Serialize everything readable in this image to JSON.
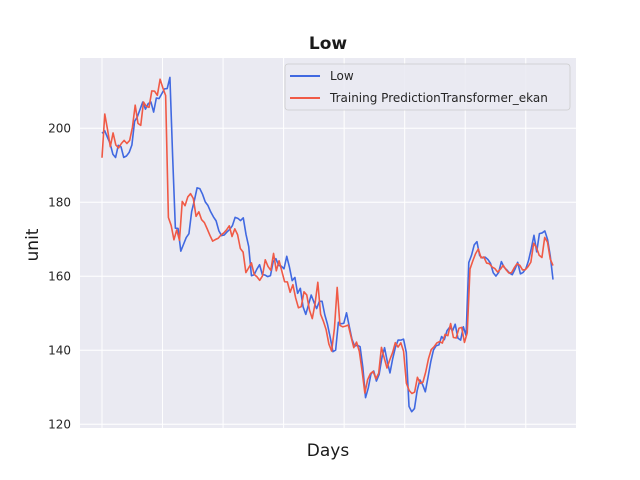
{
  "chart_data": {
    "type": "line",
    "title": "Low",
    "xlabel": "Days",
    "ylabel": "unit",
    "ylim": [
      119,
      219
    ],
    "yticks": [
      120,
      140,
      160,
      180,
      200
    ],
    "x_count": 150,
    "grid": true,
    "legend_position": "top-right",
    "colors": {
      "background": "#eaeaf2",
      "grid": "#ffffff",
      "low": "#4169e1",
      "prediction": "#f05a46"
    },
    "series": [
      {
        "name": "Low",
        "values": [
          198.64,
          199.33,
          197.55,
          195.89,
          193.0,
          192.11,
          195.39,
          195.0,
          192.14,
          192.52,
          193.48,
          195.48,
          201.88,
          203.09,
          205.11,
          207.1,
          205.17,
          206.66,
          207.13,
          204.39,
          208.18,
          208.02,
          209.33,
          210.65,
          210.75,
          213.75,
          192.4,
          173.0,
          172.94,
          166.8,
          168.63,
          170.47,
          171.51,
          177.5,
          180.5,
          183.91,
          183.69,
          182.19,
          180.11,
          179.13,
          177.44,
          176.08,
          174.98,
          172.32,
          170.99,
          171.16,
          171.98,
          172.66,
          173.7,
          175.93,
          175.67,
          175.06,
          175.8,
          171.35,
          168.04,
          160.16,
          160.41,
          161.92,
          163.13,
          160.48,
          160.33,
          159.91,
          160.18,
          163.93,
          164.77,
          162.96,
          162.73,
          162.04,
          165.41,
          162.45,
          158.82,
          159.7,
          155.39,
          156.76,
          151.77,
          149.71,
          152.29,
          154.94,
          153.02,
          151.27,
          153.23,
          153.25,
          149.6,
          147.0,
          143.48,
          139.62,
          140.06,
          147.56,
          147.17,
          147.3,
          150.14,
          146.51,
          143.0,
          141.13,
          141.37,
          140.97,
          135.43,
          127.2,
          129.79,
          133.59,
          134.4,
          131.69,
          133.46,
          137.89,
          140.72,
          137.0,
          133.89,
          137.74,
          140.82,
          142.76,
          142.75,
          143.01,
          139.39,
          124.84,
          123.4,
          124.25,
          129.13,
          131.99,
          130.74,
          128.78,
          132.71,
          136.88,
          140.06,
          141.24,
          141.47,
          143.72,
          142.87,
          145.32,
          146.28,
          145.23,
          147.05,
          143.28,
          142.74,
          146.36,
          143.97,
          163.72,
          165.65,
          168.48,
          169.36,
          165.63,
          164.97,
          165.17,
          164.58,
          163.52,
          160.96,
          160.06,
          161.04,
          163.97,
          162.43,
          161.72,
          160.89,
          160.43,
          161.89,
          163.78,
          160.66,
          161.04,
          162.05,
          164.27,
          167.48,
          171.07,
          166.62,
          171.53,
          171.72,
          172.26,
          169.95,
          165.47,
          159.12
        ],
        "color": "#4169e1"
      },
      {
        "name": "Training PredictionTransformer_ekan",
        "values": [
          192.04,
          203.85,
          199.68,
          195.03,
          198.74,
          195.49,
          194.69,
          195.89,
          196.74,
          195.9,
          196.71,
          200.29,
          206.26,
          201.34,
          200.79,
          207.08,
          205.93,
          205.67,
          210.11,
          210.04,
          208.91,
          213.26,
          210.91,
          208.86,
          175.9,
          173.75,
          169.87,
          172.54,
          169.74,
          180.24,
          179.07,
          181.45,
          182.35,
          181.02,
          176.21,
          177.43,
          175.29,
          174.52,
          172.85,
          171.08,
          169.51,
          169.94,
          170.29,
          171.17,
          171.72,
          172.54,
          173.65,
          170.75,
          172.83,
          171.26,
          167.51,
          166.54,
          161.0,
          162.27,
          163.63,
          160.5,
          159.87,
          158.91,
          160.11,
          164.45,
          162.66,
          161.61,
          166.17,
          161.48,
          164.2,
          161.37,
          158.53,
          158.47,
          155.68,
          157.73,
          154.12,
          151.49,
          151.79,
          155.81,
          154.96,
          150.82,
          148.56,
          152.59,
          158.37,
          149.75,
          147.88,
          145.57,
          141.69,
          139.8,
          145.89,
          157.0,
          146.71,
          146.34,
          146.54,
          146.83,
          143.68,
          140.71,
          142.21,
          139.71,
          134.45,
          128.44,
          132.05,
          133.69,
          134.29,
          132.31,
          133.82,
          140.79,
          137.93,
          135.22,
          137.41,
          139.31,
          142.06,
          140.88,
          142.02,
          139.75,
          131.11,
          129.17,
          128.33,
          128.72,
          132.7,
          131.05,
          131.4,
          134.14,
          137.73,
          140.21,
          140.95,
          141.98,
          142.37,
          141.95,
          144.31,
          143.95,
          147.23,
          143.46,
          143.32,
          145.95,
          146.19,
          142.13,
          144.7,
          161.93,
          164.14,
          166.09,
          167.38,
          164.99,
          165.22,
          163.57,
          163.41,
          162.51,
          162.08,
          161.14,
          161.94,
          162.97,
          161.8,
          160.92,
          160.97,
          162.32,
          163.4,
          162.97,
          161.71,
          161.78,
          162.63,
          163.83,
          168.91,
          167.82,
          165.7,
          165.09,
          170.51,
          169.24,
          164.7,
          162.89
        ],
        "color": "#f05a46"
      }
    ]
  }
}
